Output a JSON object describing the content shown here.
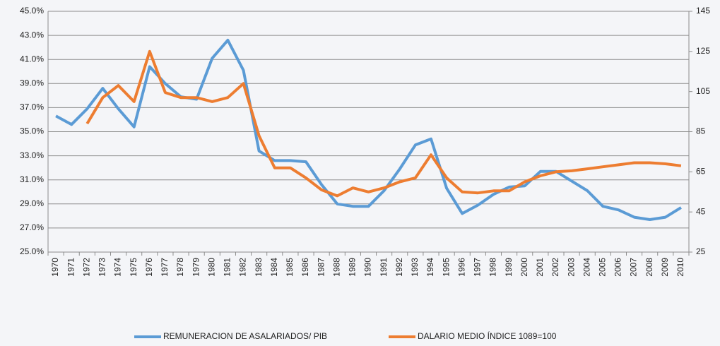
{
  "chart_data": {
    "type": "line",
    "categories": [
      "1970",
      "1971",
      "1972",
      "1973",
      "1974",
      "1975",
      "1976",
      "1977",
      "1978",
      "1979",
      "1980",
      "1981",
      "1982",
      "1983",
      "1984",
      "1985",
      "1986",
      "1987",
      "1988",
      "1989",
      "1990",
      "1991",
      "1992",
      "1993",
      "1994",
      "1995",
      "1996",
      "1997",
      "1998",
      "1999",
      "2000",
      "2001",
      "2002",
      "2003",
      "2004",
      "2005",
      "2006",
      "2007",
      "2008",
      "2009",
      "2010"
    ],
    "series": [
      {
        "name": "REMUNERACION DE ASALARIADOS/ PIB",
        "color": "#5b9bd5",
        "values": [
          36.3,
          35.6,
          36.9,
          38.6,
          36.9,
          35.4,
          40.4,
          39.0,
          37.9,
          37.7,
          41.1,
          42.6,
          40.1,
          33.4,
          32.6,
          32.6,
          32.5,
          30.6,
          29.0,
          28.8,
          28.8,
          30.1,
          31.9,
          33.9,
          34.4,
          30.3,
          28.2,
          28.9,
          29.8,
          30.4,
          30.5,
          31.7,
          31.7,
          30.9,
          30.1,
          28.8,
          28.5,
          27.9,
          27.7,
          27.9,
          28.7
        ]
      },
      {
        "name": "DALARIO MEDIO ÍNDICE 1089=100",
        "color": "#ed7d31",
        "axis": "y2",
        "values": [
          null,
          null,
          89,
          102,
          108,
          100,
          125,
          104.5,
          102,
          102,
          100,
          102,
          109,
          83,
          67,
          67,
          62,
          56,
          53,
          57,
          55,
          57,
          60,
          62,
          73.5,
          62,
          55,
          54.5,
          55.5,
          55.5,
          60,
          63,
          65,
          65.5,
          66.5,
          67.5,
          68.5,
          69.5,
          69.5,
          69,
          68
        ]
      }
    ],
    "ylim": [
      25,
      45
    ],
    "yticks": [
      {
        "value": 25,
        "label": "25.0%"
      },
      {
        "value": 27,
        "label": "27.0%"
      },
      {
        "value": 29,
        "label": "29.0%"
      },
      {
        "value": 31,
        "label": "31.0%"
      },
      {
        "value": 33,
        "label": "33.0%"
      },
      {
        "value": 35,
        "label": "35.0%"
      },
      {
        "value": 37,
        "label": "37.0%"
      },
      {
        "value": 39,
        "label": "39.0%"
      },
      {
        "value": 41,
        "label": "41.0%"
      },
      {
        "value": 43,
        "label": "43.0%"
      },
      {
        "value": 45,
        "label": "45.0%"
      }
    ],
    "y2lim": [
      25,
      145
    ],
    "y2ticks": [
      25,
      45,
      65,
      85,
      105,
      125,
      145
    ],
    "grid": true,
    "legend": "bottom"
  }
}
